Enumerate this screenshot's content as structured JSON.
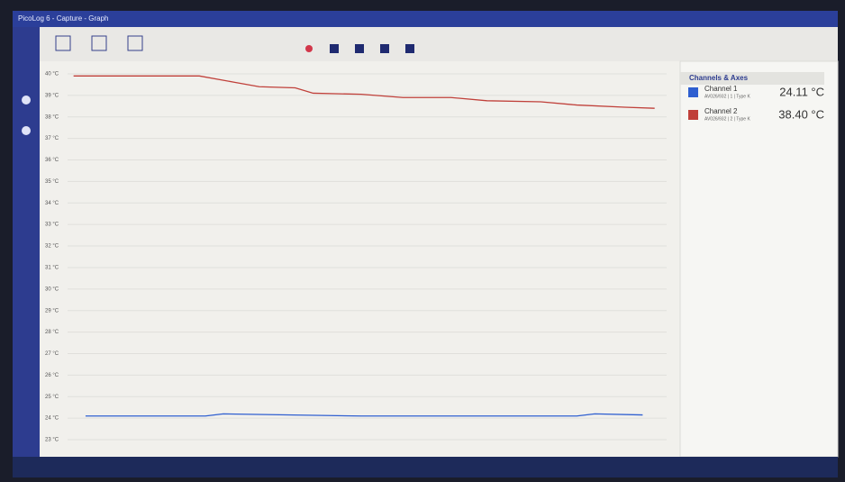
{
  "window_title": "PicoLog 6 - Capture - Graph",
  "panel_title": "Channels & Axes",
  "chart_data": {
    "type": "line",
    "ylim": [
      22.5,
      40.5
    ],
    "xlim": [
      0,
      100
    ],
    "yticks": [
      {
        "value": 40,
        "label": "40 °C"
      },
      {
        "value": 39,
        "label": "39 °C"
      },
      {
        "value": 38,
        "label": "38 °C"
      },
      {
        "value": 37,
        "label": "37 °C"
      },
      {
        "value": 36,
        "label": "36 °C"
      },
      {
        "value": 35,
        "label": "35 °C"
      },
      {
        "value": 34,
        "label": "34 °C"
      },
      {
        "value": 33,
        "label": "33 °C"
      },
      {
        "value": 32,
        "label": "32 °C"
      },
      {
        "value": 31,
        "label": "31 °C"
      },
      {
        "value": 30,
        "label": "30 °C"
      },
      {
        "value": 29,
        "label": "29 °C"
      },
      {
        "value": 28,
        "label": "28 °C"
      },
      {
        "value": 27,
        "label": "27 °C"
      },
      {
        "value": 26,
        "label": "26 °C"
      },
      {
        "value": 25,
        "label": "25 °C"
      },
      {
        "value": 24,
        "label": "24 °C"
      },
      {
        "value": 23,
        "label": "23 °C"
      }
    ],
    "grid": true,
    "series": [
      {
        "name": "Channel 1",
        "detail": "AV026/932 | 1 | Type K",
        "reading": "24.11 °C",
        "color": "#2f5fd0",
        "x": [
          3,
          23,
          26,
          49,
          85,
          88,
          96
        ],
        "values": [
          24.1,
          24.1,
          24.2,
          24.1,
          24.1,
          24.2,
          24.15
        ]
      },
      {
        "name": "Channel 2",
        "detail": "AV026/932 | 2 | Type K",
        "reading": "38.40 °C",
        "color": "#c0403a",
        "x": [
          1,
          11,
          22,
          28,
          32,
          38,
          41,
          49,
          56,
          64,
          70,
          79,
          85,
          93,
          98
        ],
        "values": [
          39.9,
          39.9,
          39.9,
          39.6,
          39.4,
          39.35,
          39.1,
          39.05,
          38.9,
          38.9,
          38.75,
          38.7,
          38.55,
          38.45,
          38.4
        ]
      }
    ]
  }
}
